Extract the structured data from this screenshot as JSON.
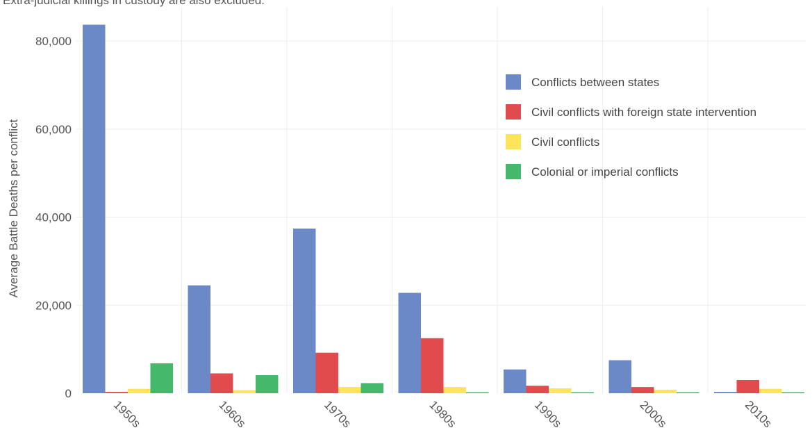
{
  "note": "Extra-judicial killings in custody are also excluded.",
  "chart_data": {
    "type": "bar",
    "ylabel": "Average Battle Deaths per conflict",
    "xlabel": "",
    "ylim": [
      0,
      88000
    ],
    "yticks": [
      0,
      20000,
      40000,
      60000,
      80000
    ],
    "ytick_labels": [
      "0",
      "20,000",
      "40,000",
      "60,000",
      "80,000"
    ],
    "grid": true,
    "legend_position": "right",
    "categories": [
      "1950s",
      "1960s",
      "1970s",
      "1980s",
      "1990s",
      "2000s",
      "2010s"
    ],
    "series": [
      {
        "name": "Conflicts between states",
        "color": "#6a89c6",
        "values": [
          83700,
          24500,
          37400,
          22800,
          5400,
          7500,
          300
        ]
      },
      {
        "name": "Civil conflicts with foreign state intervention",
        "color": "#e14b4e",
        "values": [
          300,
          4500,
          9200,
          12500,
          1700,
          1400,
          3000
        ]
      },
      {
        "name": "Civil conflicts",
        "color": "#fde45a",
        "values": [
          1000,
          700,
          1400,
          1400,
          1100,
          800,
          1000
        ]
      },
      {
        "name": "Colonial or imperial conflicts",
        "color": "#46b86c",
        "values": [
          6800,
          4100,
          2300,
          200,
          200,
          200,
          200
        ]
      }
    ]
  }
}
